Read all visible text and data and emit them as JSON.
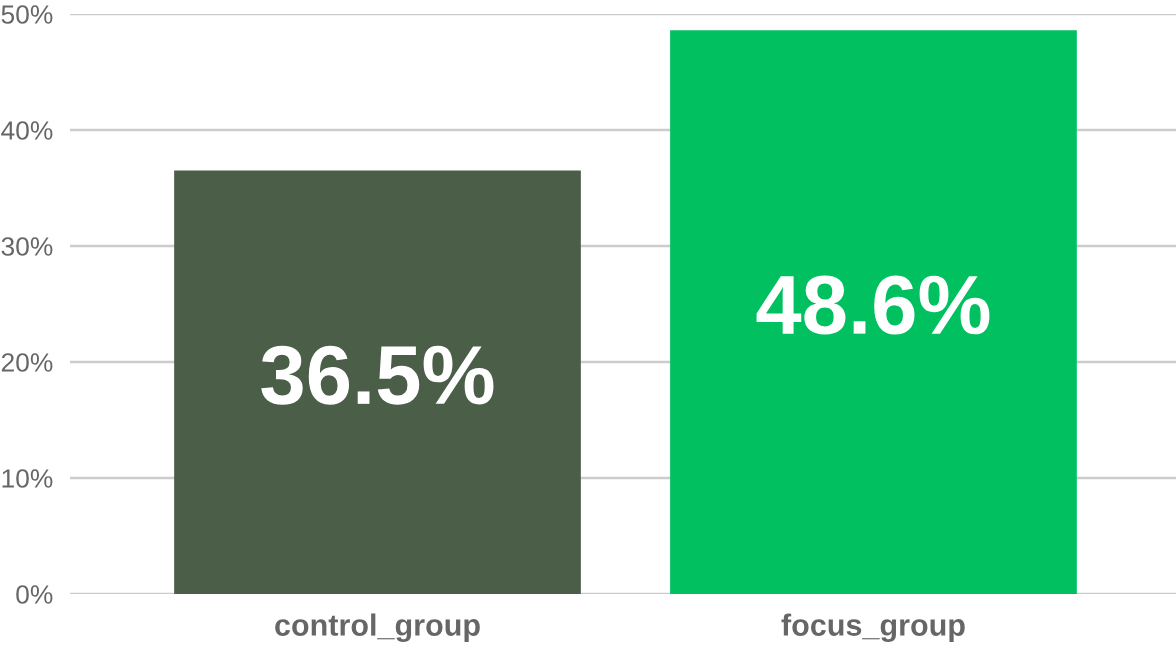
{
  "chart_data": {
    "type": "bar",
    "categories": [
      "control_group",
      "focus_group"
    ],
    "values": [
      36.5,
      48.6
    ],
    "colors": [
      "#4a5e48",
      "#00c060"
    ],
    "value_labels": [
      "36.5%",
      "48.6%"
    ],
    "ylim": [
      0,
      50
    ],
    "yticks": [
      {
        "value": 0,
        "label": "0%"
      },
      {
        "value": 10,
        "label": "10%"
      },
      {
        "value": 20,
        "label": "20%"
      },
      {
        "value": 30,
        "label": "30%"
      },
      {
        "value": 40,
        "label": "40%"
      },
      {
        "value": 50,
        "label": "50%"
      }
    ],
    "grid": "y"
  }
}
